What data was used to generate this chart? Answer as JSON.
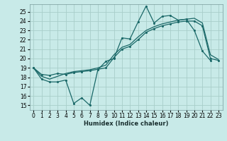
{
  "xlabel": "Humidex (Indice chaleur)",
  "bg_color": "#c8eae8",
  "grid_color": "#a8ceca",
  "line_color": "#1a6868",
  "xlim": [
    -0.5,
    23.5
  ],
  "ylim": [
    14.5,
    25.8
  ],
  "yticks": [
    15,
    16,
    17,
    18,
    19,
    20,
    21,
    22,
    23,
    24,
    25
  ],
  "xticks": [
    0,
    1,
    2,
    3,
    4,
    5,
    6,
    7,
    8,
    9,
    10,
    11,
    12,
    13,
    14,
    15,
    16,
    17,
    18,
    19,
    20,
    21,
    22,
    23
  ],
  "line1_x": [
    0,
    1,
    2,
    3,
    4,
    5,
    6,
    7,
    8,
    9,
    10,
    11,
    12,
    13,
    14,
    15,
    16,
    17,
    18,
    19,
    20,
    21,
    22
  ],
  "line1_y": [
    19.0,
    17.8,
    17.5,
    17.5,
    17.7,
    15.2,
    15.8,
    15.0,
    18.8,
    19.7,
    20.0,
    22.2,
    22.1,
    23.9,
    25.6,
    23.8,
    24.5,
    24.6,
    24.1,
    24.2,
    23.0,
    20.8,
    19.8
  ],
  "line2_x": [
    0,
    1,
    2,
    3,
    4,
    5,
    6,
    7,
    8,
    9,
    10,
    11,
    12,
    13,
    14,
    15,
    16,
    17,
    18,
    19,
    20,
    21,
    22,
    23
  ],
  "line2_y": [
    19.0,
    18.3,
    18.2,
    18.4,
    18.3,
    18.5,
    18.6,
    18.7,
    18.85,
    19.0,
    20.1,
    21.0,
    21.3,
    22.0,
    22.8,
    23.2,
    23.5,
    23.7,
    23.9,
    24.0,
    24.0,
    23.5,
    20.0,
    19.8
  ],
  "line3_x": [
    0,
    1,
    2,
    3,
    4,
    5,
    6,
    7,
    8,
    9,
    10,
    11,
    12,
    13,
    14,
    15,
    16,
    17,
    18,
    19,
    20,
    21,
    22,
    23
  ],
  "line3_y": [
    19.0,
    18.1,
    17.8,
    18.1,
    18.4,
    18.6,
    18.7,
    18.8,
    19.0,
    19.3,
    20.4,
    21.2,
    21.5,
    22.3,
    23.0,
    23.4,
    23.7,
    23.9,
    24.1,
    24.2,
    24.3,
    23.8,
    20.4,
    19.9
  ]
}
